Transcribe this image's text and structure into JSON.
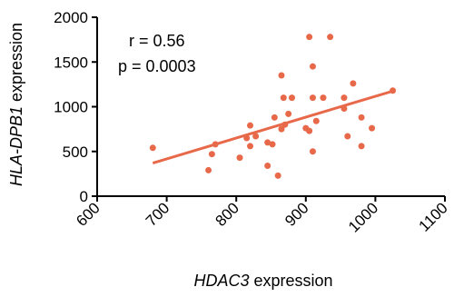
{
  "chart_data": {
    "type": "scatter",
    "xlabel_italic": "HDAC3",
    "xlabel_rest": " expression",
    "ylabel_italic": "HLA-DPB1",
    "ylabel_rest": " expression",
    "x_ticks": [
      "600",
      "700",
      "800",
      "900",
      "1000",
      "1100"
    ],
    "y_ticks": [
      "0",
      "500",
      "1000",
      "1500",
      "2000"
    ],
    "xlim": [
      600,
      1100
    ],
    "ylim": [
      0,
      2000
    ],
    "annotations": {
      "r": "r = 0.56",
      "p": "p = 0.0003"
    },
    "marker_color": "#e8694a",
    "line_color": "#e8694a",
    "points": [
      {
        "x": 680,
        "y": 540
      },
      {
        "x": 760,
        "y": 290
      },
      {
        "x": 765,
        "y": 470
      },
      {
        "x": 770,
        "y": 580
      },
      {
        "x": 805,
        "y": 430
      },
      {
        "x": 815,
        "y": 650
      },
      {
        "x": 820,
        "y": 790
      },
      {
        "x": 820,
        "y": 560
      },
      {
        "x": 828,
        "y": 670
      },
      {
        "x": 845,
        "y": 340
      },
      {
        "x": 845,
        "y": 600
      },
      {
        "x": 852,
        "y": 580
      },
      {
        "x": 855,
        "y": 880
      },
      {
        "x": 860,
        "y": 230
      },
      {
        "x": 865,
        "y": 750
      },
      {
        "x": 865,
        "y": 1350
      },
      {
        "x": 868,
        "y": 1100
      },
      {
        "x": 870,
        "y": 800
      },
      {
        "x": 875,
        "y": 920
      },
      {
        "x": 880,
        "y": 1100
      },
      {
        "x": 900,
        "y": 760
      },
      {
        "x": 905,
        "y": 1780
      },
      {
        "x": 905,
        "y": 730
      },
      {
        "x": 910,
        "y": 1100
      },
      {
        "x": 910,
        "y": 1450
      },
      {
        "x": 910,
        "y": 500
      },
      {
        "x": 915,
        "y": 840
      },
      {
        "x": 925,
        "y": 1100
      },
      {
        "x": 935,
        "y": 1780
      },
      {
        "x": 955,
        "y": 1100
      },
      {
        "x": 955,
        "y": 980
      },
      {
        "x": 960,
        "y": 670
      },
      {
        "x": 968,
        "y": 1260
      },
      {
        "x": 980,
        "y": 880
      },
      {
        "x": 980,
        "y": 560
      },
      {
        "x": 995,
        "y": 760
      },
      {
        "x": 1025,
        "y": 1180
      }
    ],
    "regression": {
      "x1": 680,
      "y1": 370,
      "x2": 1025,
      "y2": 1175
    }
  }
}
